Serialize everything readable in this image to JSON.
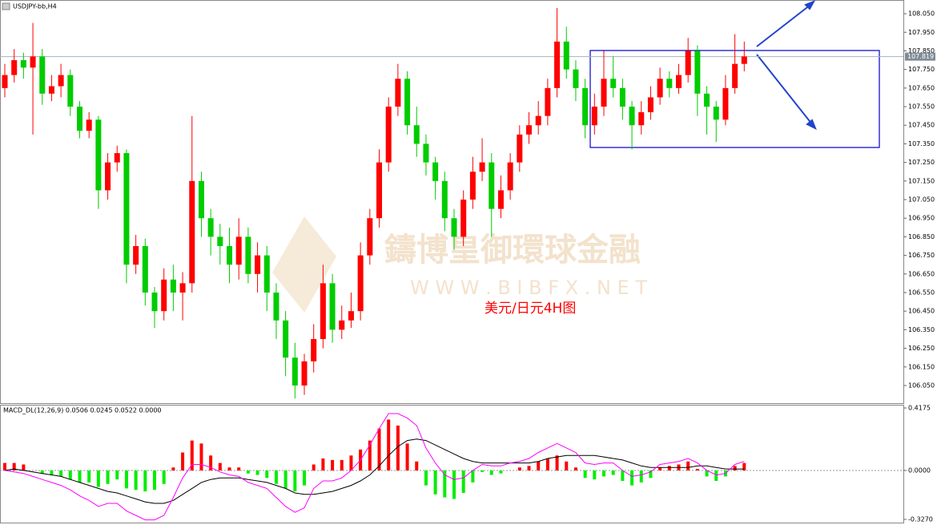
{
  "chart_data": [
    {
      "type": "candlestick",
      "title": "USDJPY-bb,H4",
      "annotation": "美元/日元4H图",
      "watermark": "鑄博皇御環球金融",
      "watermark_url": "W W W . B I B F X . N E T",
      "up_color": "#ff0000",
      "down_color": "#00cc00",
      "ylim": [
        105.955,
        108.115
      ],
      "yticks": [
        {
          "value": 108.05,
          "label": "108.050"
        },
        {
          "value": 107.95,
          "label": "107.950"
        },
        {
          "value": 107.85,
          "label": "107.850"
        },
        {
          "value": 107.75,
          "label": "107.750"
        },
        {
          "value": 107.65,
          "label": "107.650"
        },
        {
          "value": 107.55,
          "label": "107.550"
        },
        {
          "value": 107.45,
          "label": "107.450"
        },
        {
          "value": 107.35,
          "label": "107.350"
        },
        {
          "value": 107.25,
          "label": "107.250"
        },
        {
          "value": 107.15,
          "label": "107.150"
        },
        {
          "value": 107.05,
          "label": "107.050"
        },
        {
          "value": 106.95,
          "label": "106.950"
        },
        {
          "value": 106.85,
          "label": "106.850"
        },
        {
          "value": 106.75,
          "label": "106.750"
        },
        {
          "value": 106.65,
          "label": "106.650"
        },
        {
          "value": 106.55,
          "label": "106.550"
        },
        {
          "value": 106.45,
          "label": "106.450"
        },
        {
          "value": 106.35,
          "label": "106.350"
        },
        {
          "value": 106.25,
          "label": "106.250"
        },
        {
          "value": 106.15,
          "label": "106.150"
        },
        {
          "value": 106.05,
          "label": "106.050"
        }
      ],
      "current_price": {
        "value": 107.819,
        "label": "107.819"
      },
      "open": [
        107.65,
        107.72,
        107.8,
        107.76,
        107.82,
        107.62,
        107.66,
        107.72,
        107.55,
        107.42,
        107.48,
        107.1,
        107.25,
        107.3,
        106.7,
        106.8,
        106.55,
        106.45,
        106.62,
        106.55,
        106.6,
        107.15,
        106.95,
        106.85,
        106.8,
        106.7,
        106.85,
        106.65,
        106.75,
        106.55,
        106.4,
        106.2,
        106.05,
        106.18,
        106.3,
        106.6,
        106.35,
        106.4,
        106.45,
        106.75,
        106.95,
        107.25,
        107.55,
        107.7,
        107.45,
        107.35,
        107.25,
        107.15,
        106.95,
        106.85,
        107.05,
        107.2,
        107.25,
        107.0,
        107.1,
        107.25,
        107.4,
        107.45,
        107.5,
        107.65,
        107.9,
        107.75,
        107.65,
        107.45,
        107.55,
        107.7,
        107.65,
        107.55,
        107.45,
        107.52,
        107.6,
        107.7,
        107.65,
        107.72,
        107.85,
        107.62,
        107.55,
        107.48,
        107.65,
        107.78
      ],
      "high": [
        107.78,
        107.86,
        107.84,
        108.0,
        107.86,
        107.72,
        107.78,
        107.75,
        107.58,
        107.52,
        107.5,
        107.3,
        107.34,
        107.32,
        106.86,
        106.84,
        106.58,
        106.68,
        106.7,
        106.66,
        107.5,
        107.2,
        107.0,
        106.92,
        106.9,
        106.95,
        106.9,
        106.82,
        106.8,
        106.6,
        106.45,
        106.28,
        106.22,
        106.38,
        106.7,
        106.65,
        106.48,
        106.55,
        106.82,
        107.0,
        107.32,
        107.6,
        107.78,
        107.74,
        107.55,
        107.4,
        107.28,
        107.2,
        107.0,
        107.1,
        107.28,
        107.38,
        107.3,
        107.18,
        107.3,
        107.45,
        107.52,
        107.58,
        107.7,
        108.08,
        107.98,
        107.8,
        107.7,
        107.62,
        107.85,
        107.82,
        107.7,
        107.58,
        107.58,
        107.66,
        107.76,
        107.74,
        107.78,
        107.92,
        107.88,
        107.66,
        107.58,
        107.72,
        107.94,
        107.9
      ],
      "low": [
        107.6,
        107.68,
        107.7,
        107.4,
        107.56,
        107.58,
        107.6,
        107.5,
        107.38,
        107.38,
        107.0,
        107.05,
        107.2,
        106.6,
        106.65,
        106.48,
        106.36,
        106.4,
        106.45,
        106.4,
        106.55,
        106.85,
        106.75,
        106.7,
        106.6,
        106.62,
        106.6,
        106.55,
        106.45,
        106.3,
        106.1,
        105.98,
        106.0,
        106.12,
        106.25,
        106.28,
        106.3,
        106.36,
        106.4,
        106.7,
        106.9,
        107.2,
        107.5,
        107.4,
        107.28,
        107.18,
        107.05,
        106.88,
        106.78,
        106.8,
        107.0,
        107.15,
        106.85,
        106.95,
        107.05,
        107.2,
        107.35,
        107.4,
        107.45,
        107.6,
        107.7,
        107.58,
        107.38,
        107.4,
        107.5,
        107.6,
        107.48,
        107.32,
        107.4,
        107.48,
        107.56,
        107.6,
        107.62,
        107.68,
        107.5,
        107.4,
        107.36,
        107.45,
        107.62,
        107.74
      ],
      "close": [
        107.72,
        107.8,
        107.76,
        107.82,
        107.62,
        107.66,
        107.72,
        107.55,
        107.42,
        107.48,
        107.1,
        107.25,
        107.3,
        106.7,
        106.8,
        106.55,
        106.45,
        106.62,
        106.55,
        106.6,
        107.15,
        106.95,
        106.85,
        106.8,
        106.7,
        106.85,
        106.65,
        106.75,
        106.55,
        106.4,
        106.2,
        106.05,
        106.18,
        106.3,
        106.6,
        106.35,
        106.4,
        106.45,
        106.75,
        106.95,
        107.25,
        107.55,
        107.7,
        107.45,
        107.35,
        107.25,
        107.15,
        106.95,
        106.85,
        107.05,
        107.2,
        107.25,
        107.0,
        107.1,
        107.25,
        107.4,
        107.45,
        107.5,
        107.65,
        107.9,
        107.75,
        107.65,
        107.45,
        107.55,
        107.7,
        107.65,
        107.55,
        107.45,
        107.52,
        107.6,
        107.7,
        107.65,
        107.72,
        107.85,
        107.62,
        107.55,
        107.48,
        107.65,
        107.78,
        107.82
      ]
    },
    {
      "type": "macd",
      "title": "MACD_DL(12,26,9) 0.0506 0.0245 0.0522 0.0000",
      "up_color": "#ff0000",
      "down_color": "#00ee00",
      "ylim": [
        -0.327,
        0.4175
      ],
      "yticks": [
        0.4175,
        {
          "value": 0,
          "label": "0.0000"
        },
        {
          "value": -0.327,
          "label": "-0.3270"
        }
      ],
      "values": [
        0.05,
        0.05,
        0.04,
        0.0,
        -0.02,
        -0.03,
        -0.04,
        -0.06,
        -0.08,
        -0.08,
        -0.11,
        -0.09,
        -0.06,
        -0.12,
        -0.13,
        -0.14,
        -0.13,
        -0.09,
        0.02,
        0.12,
        0.2,
        0.18,
        0.1,
        0.05,
        0.02,
        0.02,
        -0.02,
        -0.03,
        -0.05,
        -0.09,
        -0.12,
        -0.14,
        -0.1,
        0.04,
        0.08,
        0.07,
        0.07,
        0.1,
        0.14,
        0.2,
        0.28,
        0.34,
        0.3,
        0.18,
        0.06,
        -0.1,
        -0.16,
        -0.18,
        -0.19,
        -0.15,
        -0.08,
        -0.01,
        -0.03,
        -0.02,
        0.0,
        0.02,
        0.03,
        0.06,
        0.08,
        0.1,
        0.06,
        0.02,
        -0.05,
        -0.06,
        -0.04,
        -0.03,
        -0.07,
        -0.1,
        -0.08,
        -0.05,
        0.02,
        0.03,
        0.04,
        0.06,
        0.01,
        -0.04,
        -0.07,
        -0.04,
        0.03,
        0.05
      ],
      "lines": [
        {
          "color": "#000000",
          "values": [
            0.0,
            0.01,
            0.0,
            -0.01,
            -0.02,
            -0.03,
            -0.04,
            -0.06,
            -0.08,
            -0.1,
            -0.12,
            -0.14,
            -0.15,
            -0.17,
            -0.19,
            -0.21,
            -0.22,
            -0.22,
            -0.2,
            -0.16,
            -0.12,
            -0.08,
            -0.06,
            -0.05,
            -0.05,
            -0.05,
            -0.06,
            -0.07,
            -0.08,
            -0.1,
            -0.12,
            -0.15,
            -0.16,
            -0.16,
            -0.15,
            -0.14,
            -0.12,
            -0.1,
            -0.07,
            -0.03,
            0.03,
            0.1,
            0.16,
            0.2,
            0.21,
            0.2,
            0.17,
            0.14,
            0.11,
            0.08,
            0.06,
            0.05,
            0.05,
            0.05,
            0.05,
            0.05,
            0.05,
            0.06,
            0.08,
            0.09,
            0.1,
            0.1,
            0.1,
            0.1,
            0.09,
            0.08,
            0.07,
            0.05,
            0.03,
            0.02,
            0.02,
            0.02,
            0.02,
            0.02,
            0.03,
            0.03,
            0.02,
            0.01,
            0.01,
            0.01
          ]
        },
        {
          "color": "#ff00ff",
          "values": [
            0.0,
            -0.01,
            -0.02,
            -0.04,
            -0.06,
            -0.08,
            -0.1,
            -0.13,
            -0.17,
            -0.2,
            -0.24,
            -0.22,
            -0.22,
            -0.27,
            -0.3,
            -0.33,
            -0.33,
            -0.3,
            -0.18,
            -0.05,
            0.04,
            0.04,
            0.02,
            -0.01,
            -0.03,
            -0.04,
            -0.08,
            -0.1,
            -0.12,
            -0.18,
            -0.24,
            -0.28,
            -0.25,
            -0.12,
            -0.07,
            -0.07,
            -0.05,
            0.0,
            0.07,
            0.17,
            0.28,
            0.38,
            0.38,
            0.35,
            0.3,
            0.15,
            0.05,
            -0.03,
            -0.06,
            -0.05,
            0.0,
            0.04,
            0.03,
            0.03,
            0.05,
            0.06,
            0.08,
            0.12,
            0.15,
            0.18,
            0.15,
            0.12,
            0.05,
            0.04,
            0.05,
            0.05,
            0.0,
            -0.04,
            -0.03,
            -0.01,
            0.04,
            0.05,
            0.06,
            0.08,
            0.05,
            0.0,
            -0.03,
            -0.02,
            0.04,
            0.06
          ]
        }
      ]
    }
  ]
}
